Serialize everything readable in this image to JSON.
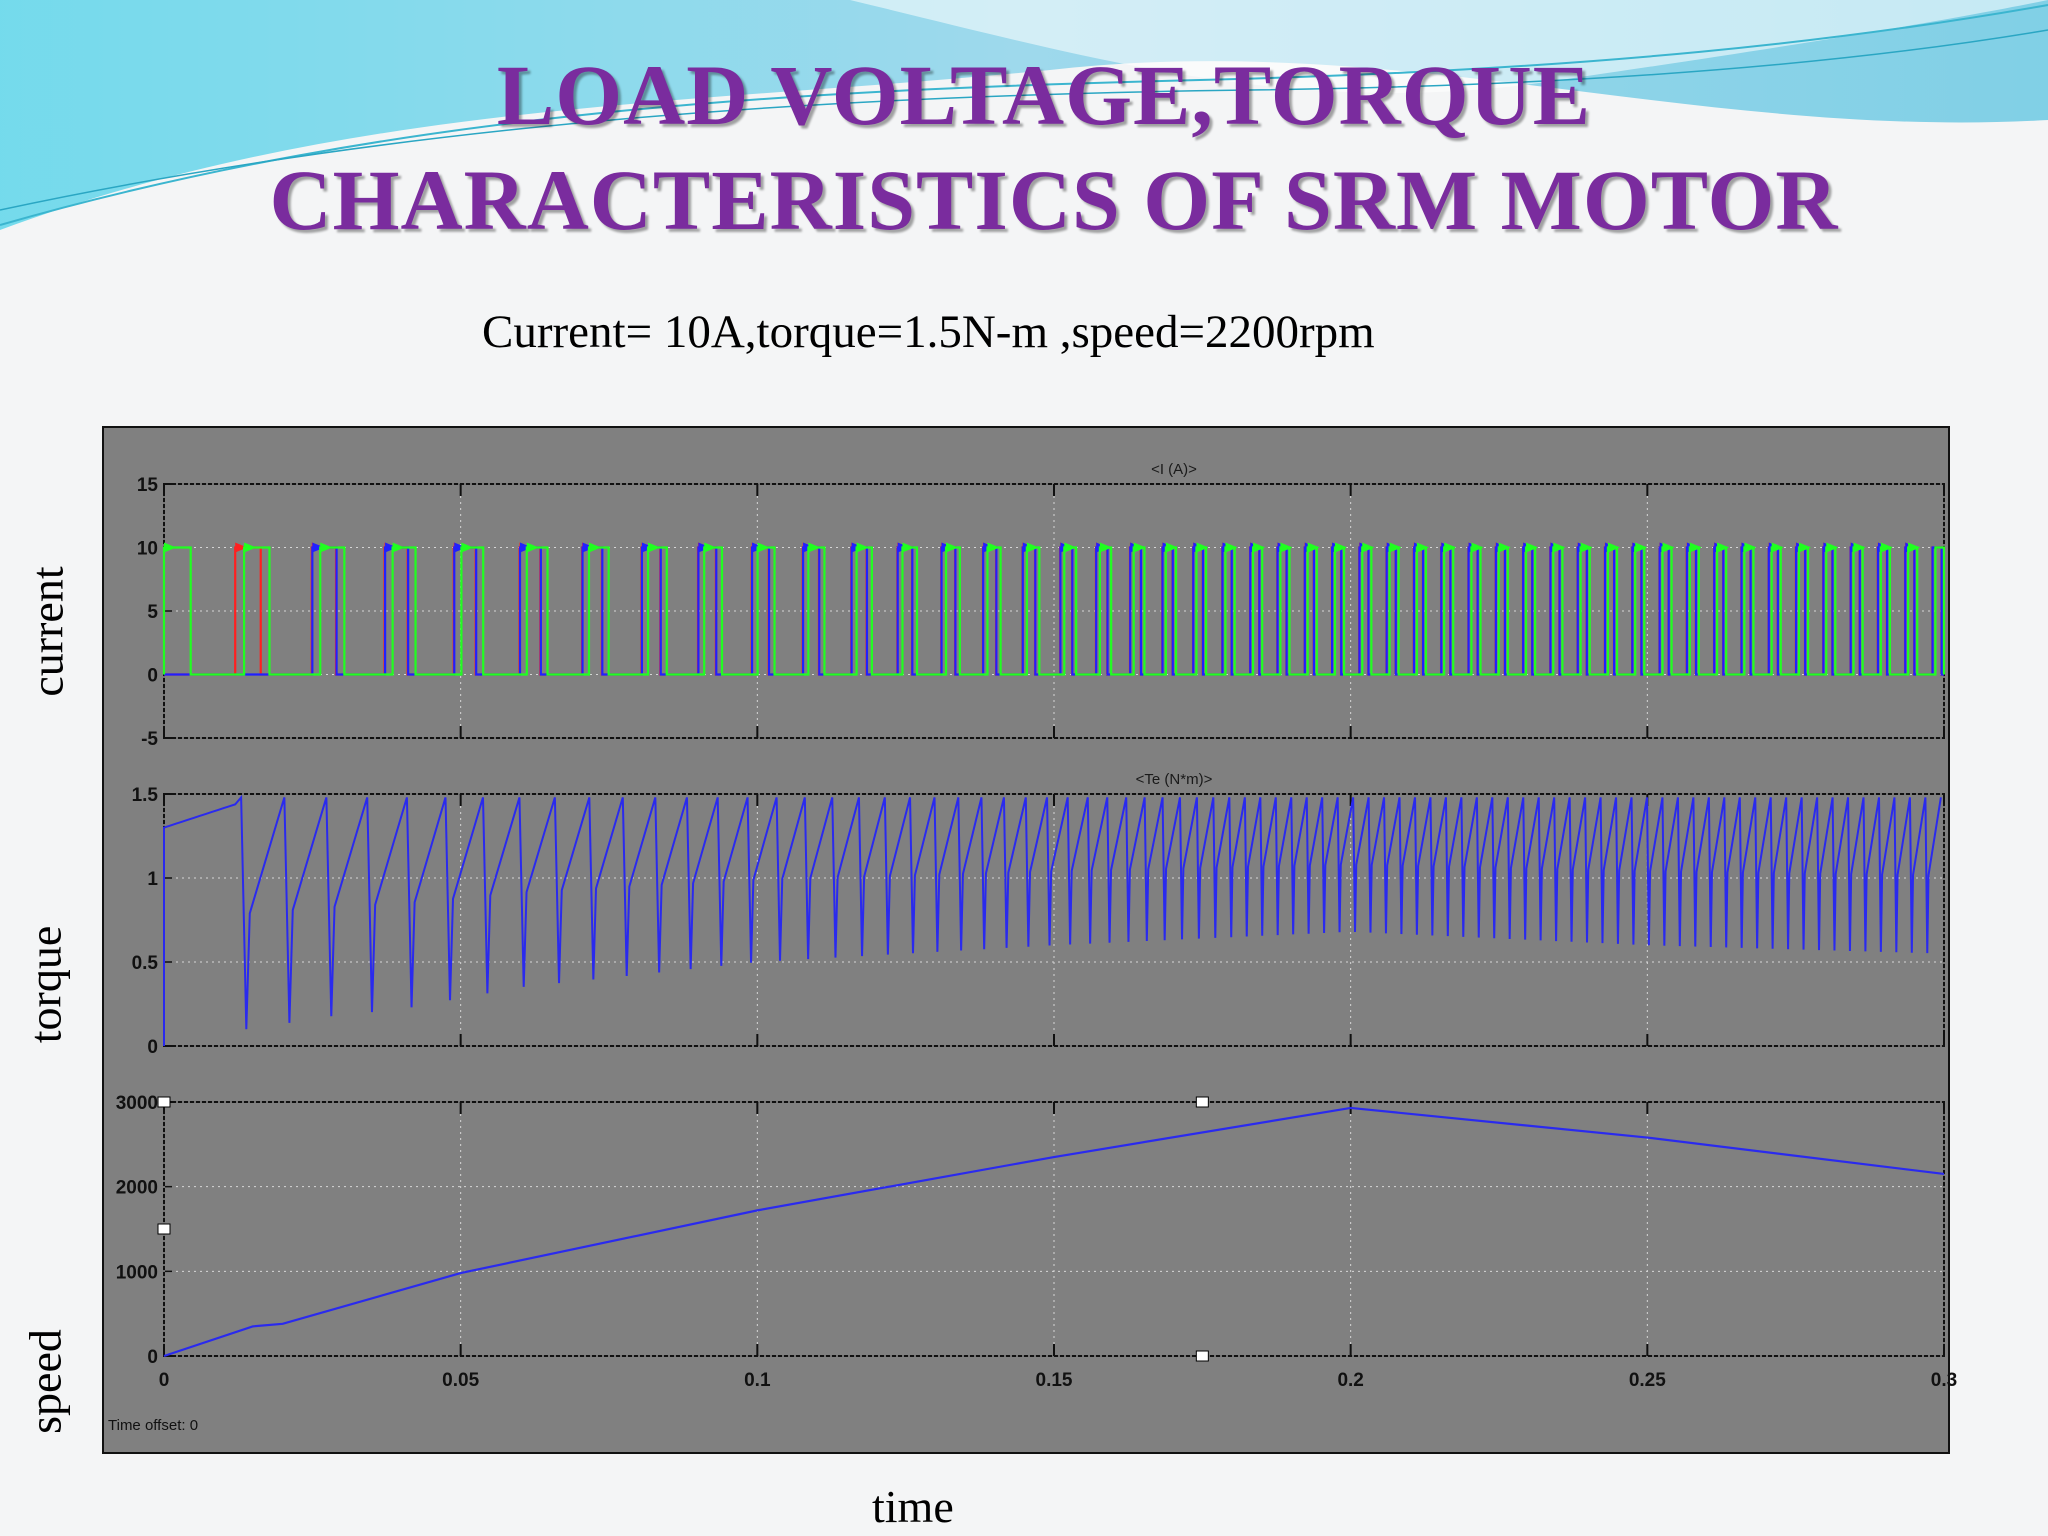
{
  "slide": {
    "title_line1": "LOAD VOLTAGE,TORQUE",
    "title_line2": "CHARACTERISTICS OF SRM MOTOR",
    "subtitle": "Current= 10A,torque=1.5N-m ,speed=2200rpm",
    "side_labels": [
      "current",
      "torque",
      "speed"
    ],
    "x_label": "time",
    "time_offset_label": "Time offset:",
    "time_offset_value": "0",
    "colors": {
      "title": "#7a2c9e",
      "scope_bg": "#808080",
      "phase_a": "#ff2020",
      "phase_b": "#2020ff",
      "phase_c": "#20ff20",
      "trace": "#2a2aee"
    }
  },
  "chart_data": [
    {
      "type": "line",
      "title": "<I (A)>",
      "xlabel": "",
      "ylabel": "",
      "xlim": [
        0,
        0.3
      ],
      "ylim": [
        -5,
        15
      ],
      "yticks": [
        "15",
        "10",
        "5",
        "0",
        "-5"
      ],
      "grid": true,
      "series": [
        {
          "color": "#ff2020",
          "description": "phase current pulses, 0 to 10 A",
          "first_rise_s": 0.012,
          "initial_period_s": 0.0135,
          "final_period_s": 0.0046
        },
        {
          "color": "#2020ff",
          "description": "phase current pulses, 0 to 10 A",
          "first_rise_s": 0.025,
          "initial_period_s": 0.0135,
          "final_period_s": 0.0046
        },
        {
          "color": "#20ff20",
          "description": "phase current pulses, 0 to 10 A",
          "first_rise_s": 0.0,
          "initial_period_s": 0.0135,
          "final_period_s": 0.0046
        }
      ]
    },
    {
      "type": "line",
      "title": "<Te (N*m)>",
      "xlabel": "",
      "ylabel": "",
      "xlim": [
        0,
        0.3
      ],
      "ylim": [
        0,
        1.5
      ],
      "yticks": [
        "1.5",
        "1",
        "0.5",
        "0"
      ],
      "grid": true,
      "series": [
        {
          "color": "#2a2aee",
          "description": "torque ripple",
          "max": 1.48,
          "min_points": [
            [
              0.015,
              0.1
            ],
            [
              0.026,
              0.17
            ],
            [
              0.04,
              0.22
            ],
            [
              0.06,
              0.35
            ],
            [
              0.1,
              0.5
            ],
            [
              0.15,
              0.6
            ],
            [
              0.2,
              0.68
            ],
            [
              0.25,
              0.6
            ],
            [
              0.3,
              0.55
            ]
          ]
        }
      ]
    },
    {
      "type": "line",
      "title": "",
      "xlabel": "",
      "ylabel": "",
      "xlim": [
        0,
        0.3
      ],
      "ylim": [
        0,
        3000
      ],
      "xticks": [
        "0",
        "0.05",
        "0.1",
        "0.15",
        "0.2",
        "0.25",
        "0.3"
      ],
      "yticks": [
        "3000",
        "2000",
        "1000",
        "0"
      ],
      "grid": true,
      "series": [
        {
          "color": "#2a2aee",
          "description": "speed",
          "x": [
            0,
            0.015,
            0.02,
            0.05,
            0.1,
            0.15,
            0.2,
            0.25,
            0.3
          ],
          "y": [
            0,
            350,
            380,
            980,
            1720,
            2350,
            2930,
            2580,
            2150
          ]
        }
      ]
    }
  ]
}
